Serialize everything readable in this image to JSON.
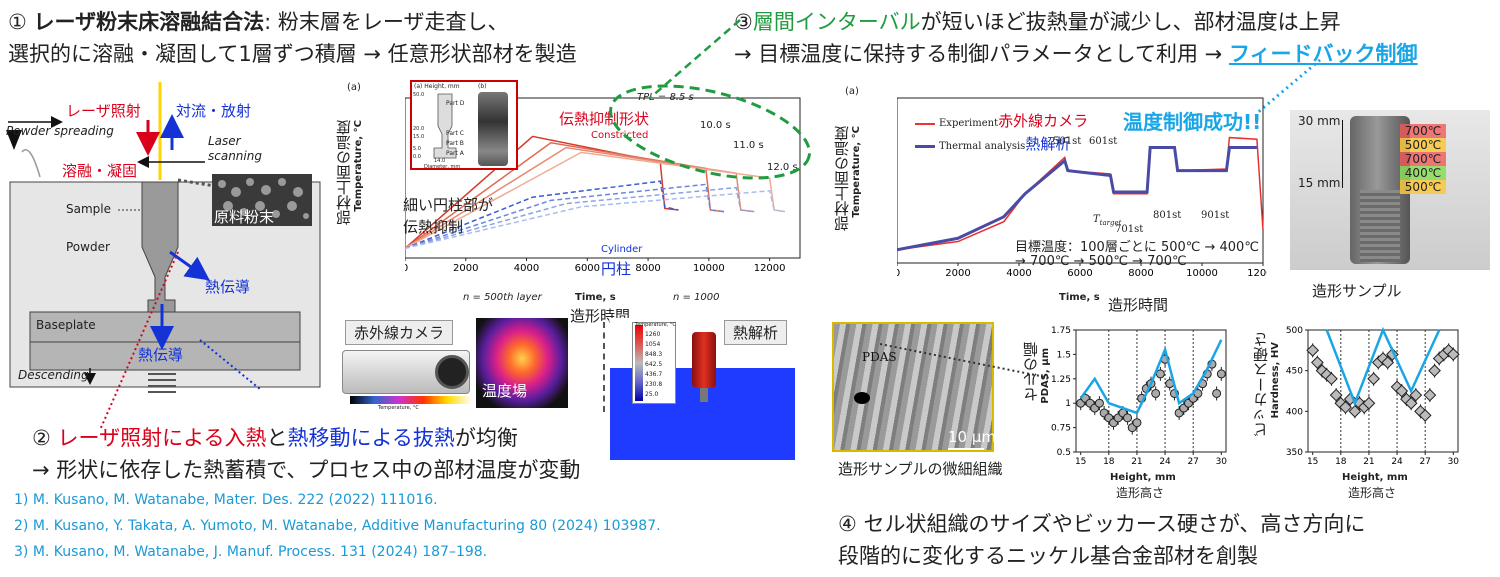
{
  "heading1": {
    "num": "①",
    "bold": "レーザ粉末床溶融結合法",
    "rest1": ": 粉末層をレーザ走査し、",
    "line2": "選択的に溶融・凝固して1層ずつ積層 → 任意形状部材を製造"
  },
  "heading3": {
    "num": "③",
    "green": "層間インターバル",
    "rest1": "が短いほど抜熱量が減少し、部材温度は上昇",
    "line2a": "→ 目標温度に保持する制御パラメータとして利用 → ",
    "link": "フィードバック制御"
  },
  "heading2": {
    "num": "②",
    "red": "レーザ照射による入熱",
    "mid": "と",
    "blue": "熱移動による抜熱",
    "rest": "が均衡",
    "line2": "→ 形状に依存した熱蓄積で、プロセス中の部材温度が変動"
  },
  "heading4": {
    "line1": "④ セル状組織のサイズやビッカース硬さが、高さ方向に",
    "line2": "段階的に変化するニッケル基合金部材を創製"
  },
  "references": [
    "1) M. Kusano, M. Watanabe, Mater. Des. 222 (2022) 111016.",
    "2) M. Kusano, Y. Takata, A. Yumoto, M. Watanabe, Additive Manufacturing 80 (2024) 103987.",
    "3) M. Kusano, M. Watanabe, J. Manuf. Process. 131 (2024) 187–198."
  ],
  "schematic": {
    "laser": "レーザ照射",
    "convection": "対流・放射",
    "powder_spreading": "Powder spreading",
    "laser_scanning1": "Laser",
    "laser_scanning2": "scanning",
    "melt": "溶融・凝固",
    "sample": "Sample",
    "powder": "Powder",
    "raw_powder": "原料粉末",
    "conduction1": "熱伝導",
    "baseplate": "Baseplate",
    "conduction2": "熱伝導",
    "descending": "Descending"
  },
  "chart1": {
    "panel_label": "(a)",
    "ylabel_jp": "部材上面の温度",
    "ylabel": "Temperature, °C",
    "xlabel": "Time, s",
    "xlabel_jp": "造形時間",
    "annot_constricted_jp": "伝熱抑制形状",
    "annot_constricted": "Constricted",
    "annot_thin1": "細い円柱部が",
    "annot_thin2": "伝熱抑制",
    "annot_cylinder": "Cylinder",
    "annot_cylinder_jp": "円柱",
    "tpl_labels": [
      "TPL = 8.5 s",
      "10.0 s",
      "11.0 s",
      "12.0 s"
    ],
    "layer500": "n = 500th layer",
    "layer1000": "n = 1000",
    "inset_a": "(a) Height, mm",
    "inset_b": "(b)",
    "inset_parts": [
      "Part D",
      "Part C",
      "Part B",
      "Part A"
    ],
    "inset_ticks": [
      "50.0",
      "20.0",
      "15.0",
      "5.0",
      "0.0"
    ],
    "inset_dia": "14.0",
    "inset_dia_label": "Diameter, mm"
  },
  "chart2": {
    "panel_label": "(a)",
    "ylabel_jp": "部材上面の温度",
    "ylabel": "Temperature, °C",
    "xlabel": "Time, s",
    "xlabel_jp": "造形時間",
    "legend_exp": "Experiment",
    "legend_exp_jp": "赤外線カメラ",
    "legend_thermal": "Thermal analysis",
    "legend_thermal_jp": "熱解析",
    "success": "温度制御成功!!",
    "layers": [
      "501st",
      "601st",
      "701st",
      "801st",
      "901st"
    ],
    "ttarget": "T",
    "ttarget_sub": "target",
    "target_line1": "目標温度：100層ごとに 500℃ → 400℃",
    "target_line2": "→ 700℃ → 500℃ → 700℃"
  },
  "sample_photo": {
    "caption": "造形サンプル",
    "h30": "30 mm",
    "h15": "15 mm",
    "bands": [
      "700℃",
      "500℃",
      "700℃",
      "400℃",
      "500℃"
    ]
  },
  "ir_camera": {
    "label": "赤外線カメラ",
    "field": "温度場",
    "scale_label": "Temperature, °C"
  },
  "thermal_analysis": {
    "label": "熱解析",
    "legend_title": "Temperature, °C",
    "legend_values": [
      "1260",
      "1054",
      "848.3",
      "642.5",
      "436.7",
      "230.8",
      "25.0"
    ]
  },
  "micro": {
    "label": "PDAS",
    "scale": "10 μm",
    "caption": "造形サンプルの微細組織"
  },
  "chart3": {
    "ylabel_jp": "セルの幅",
    "ylabel": "PDAS, μm",
    "xlabel": "Height, mm",
    "xlabel_jp": "造形高さ"
  },
  "chart4": {
    "ylabel_jp": "ビッカース硬さ",
    "ylabel": "Hardness, HV",
    "xlabel": "Height, mm",
    "xlabel_jp": "造形高さ"
  },
  "chart_data": [
    {
      "type": "line",
      "title": "",
      "xlabel": "Time, s",
      "ylabel": "Temperature, °C",
      "xlim": [
        0,
        13000
      ],
      "ylim": [
        0,
        1000
      ],
      "xticks": [
        0,
        2000,
        4000,
        6000,
        8000,
        10000,
        12000
      ],
      "yticks": [
        0,
        200,
        400,
        600,
        800,
        1000
      ],
      "series": [
        {
          "x": [
            0,
            4200,
            8400,
            8550,
            9000
          ],
          "y": [
            60,
            760,
            600,
            310,
            300
          ]
        },
        {
          "x": [
            0,
            4800,
            9900,
            10050,
            10500
          ],
          "y": [
            60,
            720,
            560,
            300,
            290
          ]
        },
        {
          "x": [
            0,
            5300,
            10900,
            11050,
            11500
          ],
          "y": [
            60,
            690,
            530,
            300,
            290
          ]
        },
        {
          "x": [
            0,
            5800,
            12000,
            12150,
            12500
          ],
          "y": [
            60,
            660,
            500,
            300,
            290
          ]
        },
        {
          "x": [
            0,
            4200,
            8400,
            8550,
            9000
          ],
          "y": [
            60,
            380,
            480,
            320,
            300
          ]
        },
        {
          "x": [
            0,
            4800,
            9900,
            10050,
            10500
          ],
          "y": [
            60,
            360,
            460,
            300,
            290
          ]
        },
        {
          "x": [
            0,
            5300,
            10900,
            11050,
            11500
          ],
          "y": [
            60,
            340,
            440,
            300,
            290
          ]
        },
        {
          "x": [
            0,
            5800,
            12000,
            12150,
            12500
          ],
          "y": [
            60,
            320,
            420,
            300,
            290
          ]
        }
      ]
    },
    {
      "type": "line",
      "title": "",
      "xlabel": "Time, s",
      "ylabel": "Temperature, °C",
      "xlim": [
        0,
        12000
      ],
      "ylim": [
        0,
        1000
      ],
      "xticks": [
        0,
        2000,
        4000,
        6000,
        8000,
        10000,
        12000
      ],
      "yticks": [
        0,
        200,
        400,
        600,
        800,
        1000
      ],
      "series": [
        {
          "name": "Experiment",
          "x": [
            0,
            2000,
            3500,
            4200,
            5500,
            5600,
            7000,
            7100,
            8200,
            8300,
            9100,
            9200,
            10800,
            10900,
            11800,
            12000
          ],
          "y": [
            80,
            130,
            250,
            420,
            640,
            560,
            540,
            420,
            420,
            700,
            700,
            560,
            570,
            760,
            750,
            200
          ]
        },
        {
          "name": "Thermal analysis",
          "x": [
            0,
            2000,
            3500,
            4200,
            5500,
            5600,
            7000,
            7100,
            8200,
            8300,
            9100,
            9200,
            10800,
            10900,
            11800
          ],
          "y": [
            80,
            150,
            280,
            420,
            620,
            560,
            530,
            430,
            430,
            700,
            700,
            560,
            560,
            700,
            700
          ]
        }
      ]
    },
    {
      "type": "scatter",
      "title": "",
      "xlabel": "Height, mm",
      "ylabel": "PDAS, μm",
      "xlim": [
        14.5,
        30.5
      ],
      "ylim": [
        0.5,
        1.75
      ],
      "xticks": [
        15,
        18,
        21,
        24,
        27,
        30
      ],
      "yticks": [
        0.5,
        0.75,
        1.0,
        1.25,
        1.5,
        1.75
      ],
      "series": [
        {
          "x": [
            15,
            15.5,
            16,
            16.5,
            17,
            17.5,
            18,
            18.5,
            19,
            19.5,
            20,
            20.5,
            21,
            21.5,
            22,
            22.5,
            23,
            23.5,
            24,
            24.5,
            25,
            25.5,
            26,
            26.5,
            27,
            27.5,
            28,
            28.5,
            29,
            29.5,
            30
          ],
          "y": [
            1.0,
            1.05,
            1.0,
            0.95,
            1.0,
            0.9,
            0.85,
            0.8,
            0.85,
            0.9,
            0.85,
            0.75,
            0.8,
            1.05,
            1.15,
            1.2,
            1.1,
            1.3,
            1.45,
            1.2,
            1.1,
            0.9,
            0.95,
            1.0,
            1.05,
            1.1,
            1.2,
            1.3,
            1.4,
            1.1,
            1.3
          ]
        },
        {
          "x": [
            15,
            16.5,
            18,
            21,
            22.5,
            24,
            25.5,
            27,
            28.5,
            30
          ],
          "y": [
            1.05,
            1.25,
            1.0,
            0.9,
            1.2,
            1.55,
            1.0,
            1.1,
            1.35,
            1.65
          ]
        }
      ]
    },
    {
      "type": "scatter",
      "title": "",
      "xlabel": "Height, mm",
      "ylabel": "Hardness, HV",
      "xlim": [
        14.5,
        30.5
      ],
      "ylim": [
        350,
        500
      ],
      "xticks": [
        15,
        18,
        21,
        24,
        27,
        30
      ],
      "yticks": [
        350,
        400,
        450,
        500
      ],
      "series": [
        {
          "x": [
            15,
            15.5,
            16,
            16.5,
            17,
            17.5,
            18,
            18.5,
            19,
            19.5,
            20,
            20.5,
            21,
            21.5,
            22,
            22.5,
            23,
            23.5,
            24,
            24.5,
            25,
            25.5,
            26,
            26.5,
            27,
            27.5,
            28,
            28.5,
            29,
            29.5,
            30
          ],
          "y": [
            475,
            460,
            450,
            445,
            440,
            420,
            410,
            405,
            415,
            400,
            410,
            405,
            410,
            440,
            460,
            465,
            460,
            470,
            430,
            425,
            415,
            410,
            420,
            400,
            395,
            420,
            450,
            465,
            470,
            475,
            470
          ]
        },
        {
          "x": [
            16.5,
            19.5,
            22.5,
            25.5,
            28.5
          ],
          "y": [
            500,
            410,
            500,
            425,
            500
          ]
        }
      ]
    }
  ]
}
